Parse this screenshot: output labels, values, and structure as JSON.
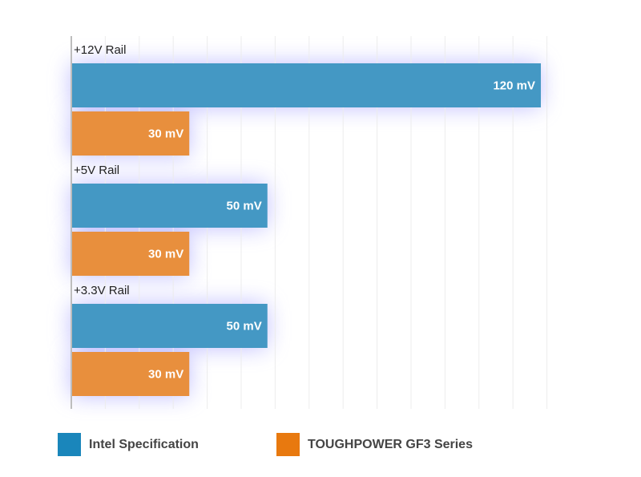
{
  "chart_data": {
    "type": "bar",
    "orientation": "horizontal",
    "categories": [
      "+12V Rail",
      "+5V Rail",
      "+3.3V Rail"
    ],
    "series": [
      {
        "name": "Intel Specification",
        "color": "#1a86bb",
        "values": [
          120,
          50,
          50
        ],
        "labels": [
          "120 mV",
          "50 mV",
          "50 mV"
        ]
      },
      {
        "name": "TOUGHPOWER GF3 Series",
        "color": "#e8790f",
        "values": [
          30,
          30,
          30
        ],
        "labels": [
          "30 mV",
          "30 mV",
          "30 mV"
        ]
      }
    ],
    "unit": "mV",
    "xlim": [
      0,
      130
    ],
    "grid": true,
    "legend_position": "bottom"
  }
}
